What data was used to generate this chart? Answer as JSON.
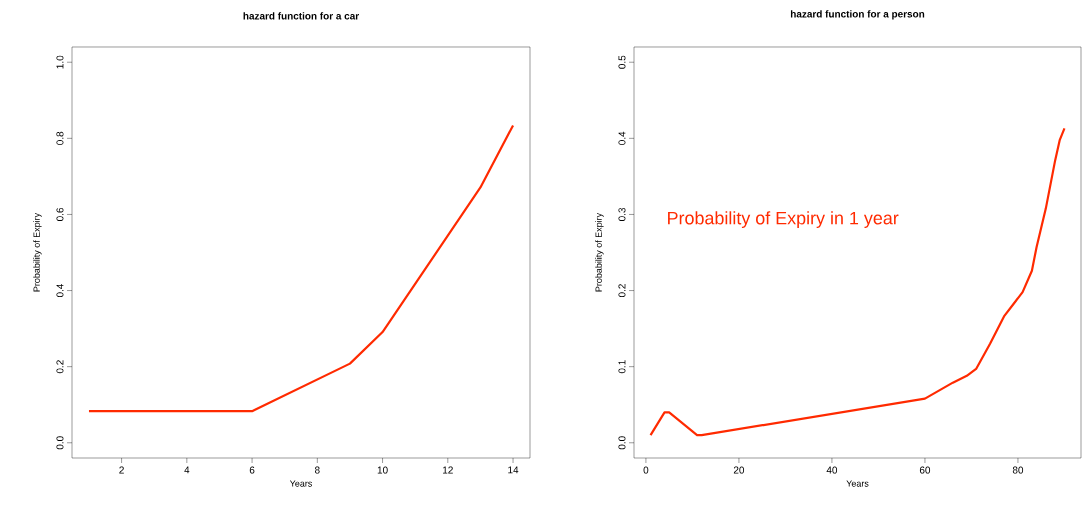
{
  "chart_data": [
    {
      "type": "line",
      "title": "hazard function for a car",
      "xlabel": "Years",
      "ylabel": "Probability of Expiry",
      "x": [
        1,
        6,
        9,
        10,
        13,
        14
      ],
      "series": [
        {
          "color": "#ff2a00",
          "values": [
            0.083,
            0.083,
            0.208,
            0.291,
            0.671,
            0.834
          ]
        }
      ],
      "xlim": [
        0.48,
        14.52
      ],
      "ylim": [
        -0.04,
        1.04
      ],
      "xticks": [
        2,
        4,
        6,
        8,
        10,
        12,
        14
      ],
      "yticks": [
        {
          "value": 0,
          "label": "0.0"
        },
        {
          "value": 0.2,
          "label": "0.2"
        },
        {
          "value": 0.4,
          "label": "0.4"
        },
        {
          "value": 0.6,
          "label": "0.6"
        },
        {
          "value": 0.8,
          "label": "0.8"
        },
        {
          "value": 1,
          "label": "1.0"
        }
      ],
      "marker": "none",
      "line_style": "solid"
    },
    {
      "type": "line",
      "title": "hazard function for a person",
      "xlabel": "Years",
      "ylabel": "Probability of Expiry",
      "annotations": [
        "Probability of Expiry in 1 year"
      ],
      "x": [
        1,
        4,
        5,
        11,
        12,
        60,
        66,
        69,
        71,
        74,
        77,
        79,
        81,
        83,
        84,
        86,
        88,
        89,
        90
      ],
      "series": [
        {
          "color": "#ff2a00",
          "values": [
            0.01,
            0.04,
            0.04,
            0.01,
            0.01,
            0.058,
            0.079,
            0.088,
            0.097,
            0.13,
            0.166,
            0.182,
            0.198,
            0.226,
            0.257,
            0.308,
            0.371,
            0.398,
            0.413
          ]
        }
      ],
      "xlim": [
        -2.56,
        93.56
      ],
      "ylim": [
        -0.02,
        0.52
      ],
      "xticks": [
        0,
        20,
        40,
        60,
        80
      ],
      "yticks": [
        {
          "value": 0,
          "label": "0.0"
        },
        {
          "value": 0.1,
          "label": "0.1"
        },
        {
          "value": 0.2,
          "label": "0.2"
        },
        {
          "value": 0.3,
          "label": "0.3"
        },
        {
          "value": 0.4,
          "label": "0.4"
        },
        {
          "value": 0.5,
          "label": "0.5"
        }
      ],
      "marker": "none",
      "line_style": "solid"
    }
  ]
}
